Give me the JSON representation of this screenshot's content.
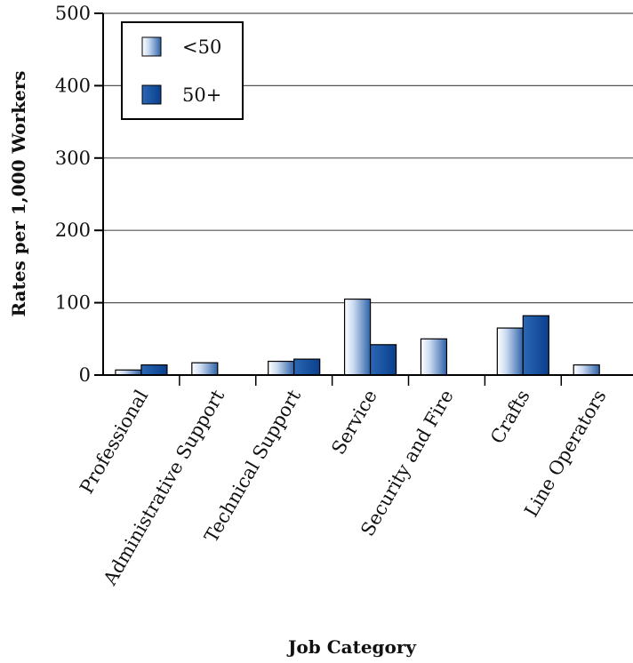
{
  "chart_data": {
    "type": "bar",
    "title": "",
    "xlabel": "Job Category",
    "ylabel": "Rates per 1,000 Workers",
    "ylim": [
      0,
      500
    ],
    "yticks": [
      "0",
      "100",
      "200",
      "300",
      "400",
      "500"
    ],
    "grid": true,
    "legend_position": "top-left",
    "categories": [
      "Professional",
      "Administrative Support",
      "Technical Support",
      "Service",
      "Security and Fire",
      "Crafts",
      "Line Operators"
    ],
    "series": [
      {
        "name": "<50",
        "values": [
          7,
          17,
          19,
          105,
          50,
          65,
          14
        ],
        "color": "#9dbce0"
      },
      {
        "name": "50+",
        "values": [
          14,
          0,
          22,
          42,
          0,
          82,
          0
        ],
        "color": "#0d4ba0"
      }
    ]
  }
}
